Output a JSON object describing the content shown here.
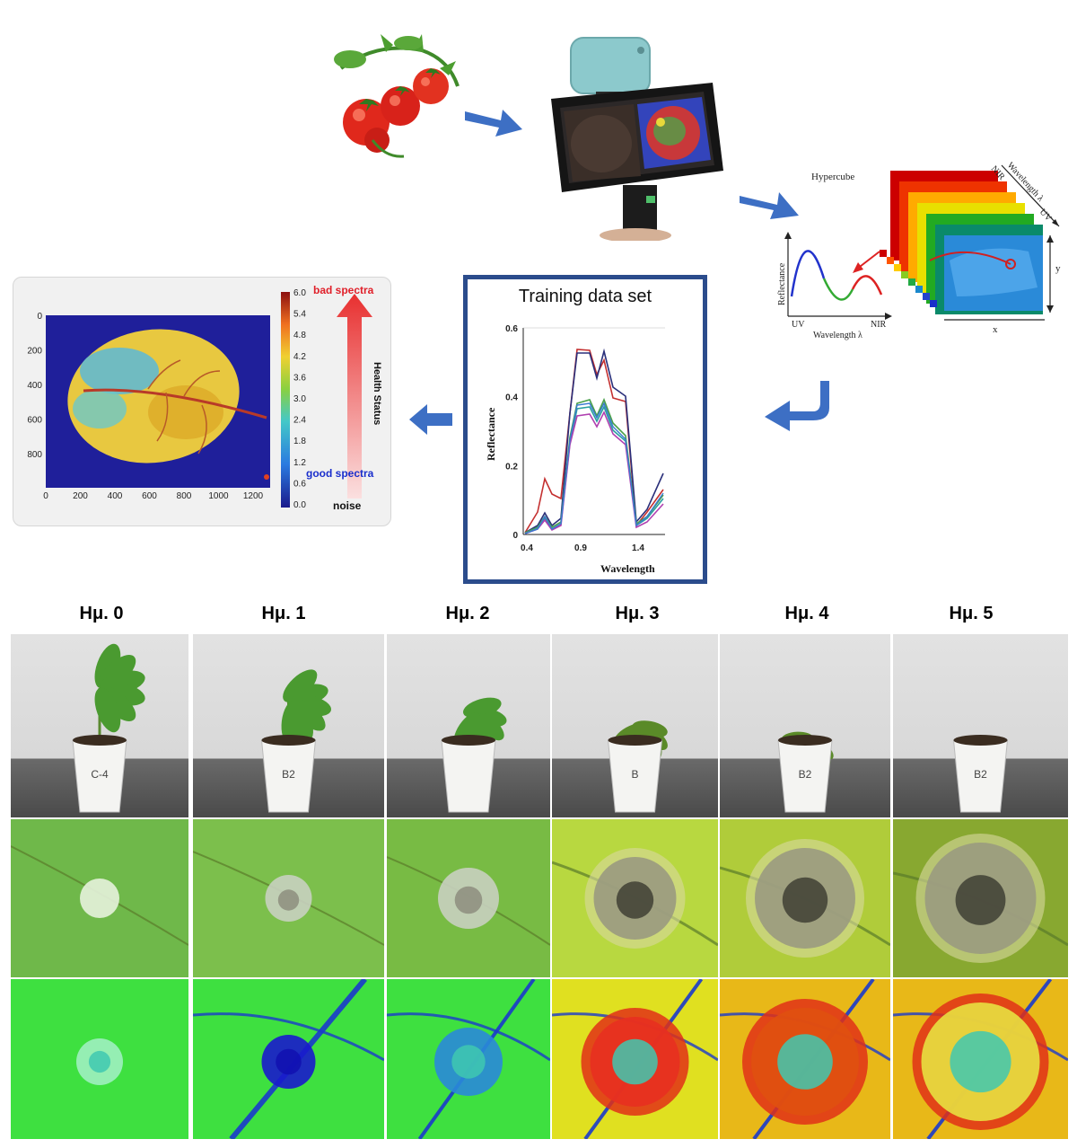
{
  "heatmap_panel": {
    "y_ticks": [
      "0",
      "200",
      "400",
      "600",
      "800"
    ],
    "x_ticks": [
      "0",
      "200",
      "400",
      "600",
      "800",
      "1000",
      "1200"
    ],
    "colorbar_ticks": [
      "6.0",
      "5.4",
      "4.8",
      "4.2",
      "3.6",
      "3.0",
      "2.4",
      "1.8",
      "1.2",
      "0.6",
      "0.0"
    ],
    "bad_label": "bad spectra",
    "good_label": "good spectra",
    "noise_label": "noise",
    "axis_title": "Health Status"
  },
  "training": {
    "title": "Training data set",
    "ylabel": "Reflectance",
    "xlabel": "Wavelength",
    "y_ticks": [
      "0",
      "0.2",
      "0.4",
      "0.6"
    ],
    "x_ticks": [
      "0.4",
      "0.9",
      "1.4"
    ]
  },
  "hypercube": {
    "title": "Hypercube",
    "ylabel": "Reflectance",
    "uv_label": "UV",
    "nir_label": "NIR",
    "xlabel": "Wavelength λ",
    "cube_wavelength": "Wavelength λ",
    "cube_nir": "NIR",
    "cube_uv": "UV",
    "x_label": "x",
    "y_label": "y"
  },
  "days": [
    "Ημ. 0",
    "Ημ. 1",
    "Ημ. 2",
    "Ημ. 3",
    "Ημ. 4",
    "Ημ. 5"
  ],
  "pot_labels": [
    "C-4",
    "B2",
    "",
    "B",
    "B2",
    "B2"
  ],
  "colors": {
    "frame": "#2b4c8c",
    "arrow": "#3d6fc4",
    "accent_red": "#e0202a",
    "accent_blue": "#1a2ecc"
  }
}
